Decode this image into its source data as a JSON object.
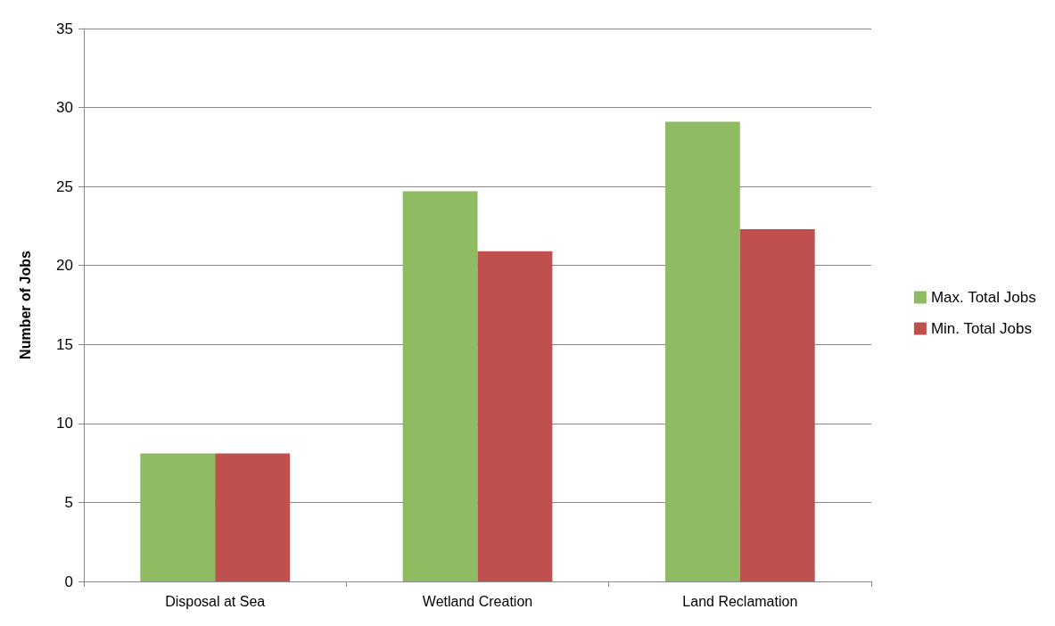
{
  "chart_data": {
    "type": "bar",
    "ylabel": "Number of Jobs",
    "categories": [
      "Disposal at Sea",
      "Wetland Creation",
      "Land Reclamation"
    ],
    "series": [
      {
        "name": "Max. Total Jobs",
        "color": "#8fbc62",
        "values": [
          8.1,
          24.7,
          29.1
        ]
      },
      {
        "name": "Min. Total Jobs",
        "color": "#c0504d",
        "values": [
          8.1,
          20.9,
          22.3
        ]
      }
    ],
    "ylim": [
      0,
      35
    ],
    "yticks": [
      0,
      5,
      10,
      15,
      20,
      25,
      30,
      35
    ],
    "grid": "y",
    "legend": "right"
  }
}
